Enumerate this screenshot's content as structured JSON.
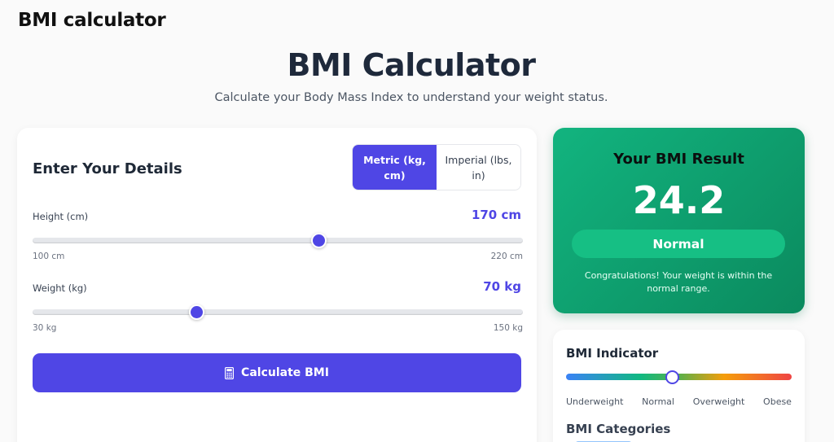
{
  "window": {
    "title": "BMI calculator"
  },
  "header": {
    "title": "BMI Calculator",
    "subtitle": "Calculate your Body Mass Index to understand your weight status."
  },
  "input_card": {
    "heading": "Enter Your Details",
    "unit_toggle": {
      "options": [
        {
          "label": "Metric (kg, cm)",
          "active": true
        },
        {
          "label": "Imperial (lbs, in)",
          "active": false
        }
      ]
    },
    "height": {
      "label": "Height (cm)",
      "value": 170,
      "value_display": "170 cm",
      "min": 100,
      "max": 220,
      "min_label": "100 cm",
      "max_label": "220 cm"
    },
    "weight": {
      "label": "Weight (kg)",
      "value": 70,
      "value_display": "70 kg",
      "min": 30,
      "max": 150,
      "min_label": "30 kg",
      "max_label": "150 kg"
    },
    "calculate_button": {
      "label": "Calculate BMI",
      "icon": "calculator-icon"
    }
  },
  "result_card": {
    "title": "Your BMI Result",
    "bmi": "24.2",
    "category": "Normal",
    "message": "Congratulations! Your weight is within the normal range."
  },
  "indicator_card": {
    "title": "BMI Indicator",
    "marker_position_pct": 47,
    "labels": [
      "Underweight",
      "Normal",
      "Overweight",
      "Obese"
    ],
    "categories_title": "BMI Categories"
  },
  "colors": {
    "accent": "#4f46e5",
    "result_green": "#10b981",
    "underweight": "#3b82f6",
    "normal": "#10b981",
    "overweight": "#f59e0b",
    "obese": "#ef4444"
  }
}
